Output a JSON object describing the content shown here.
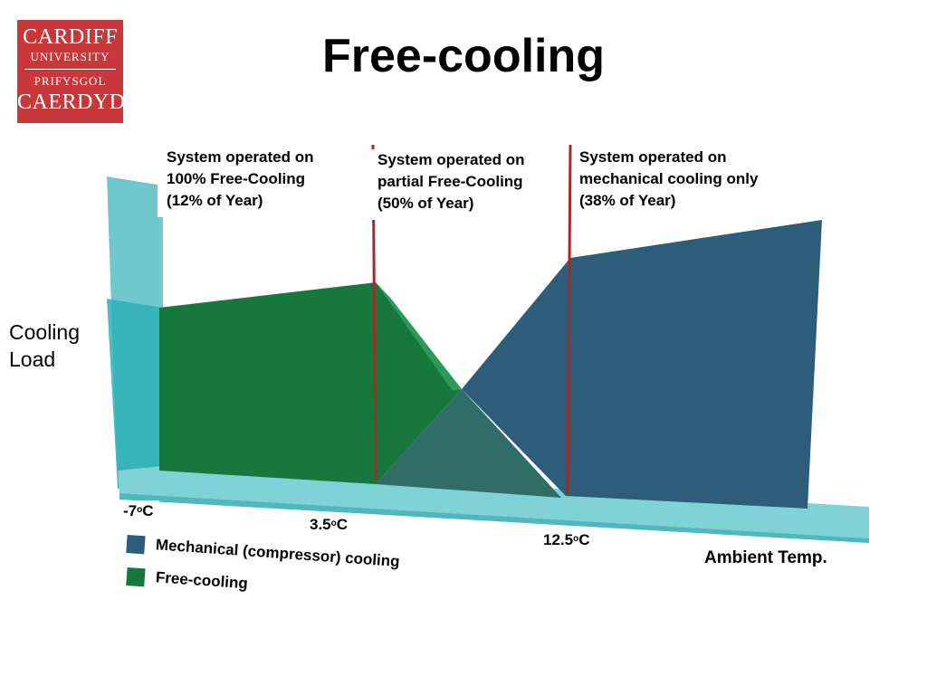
{
  "logo": {
    "line1": "CARDIFF",
    "line2": "UNIVERSITY",
    "line3": "PRIFYSGOL",
    "line4": "CAERDYDD"
  },
  "title": "Free-cooling",
  "colors": {
    "mechanical": "#2e5d79",
    "free_cooling": "#17783d",
    "overlap": "#2f6d66",
    "axis": "#5fc2c8",
    "divider": "#a22a2a"
  },
  "annotations": {
    "full": [
      "System operated on",
      "100% Free-Cooling",
      "(12% of Year)"
    ],
    "partial": [
      "System operated on",
      "partial Free-Cooling",
      "(50% of Year)"
    ],
    "mechanical": [
      "System operated on",
      "mechanical cooling only",
      "(38% of Year)"
    ]
  },
  "axes": {
    "ylabel_line1": "Cooling",
    "ylabel_line2": "Load",
    "xlabel": "Ambient Temp."
  },
  "ticks": {
    "t1": {
      "value": "-7",
      "unit": "C",
      "sup": "o"
    },
    "t2": {
      "value": "3.5",
      "unit": "C",
      "sup": "o"
    },
    "t3": {
      "value": "12.5",
      "unit": "C",
      "sup": "o"
    }
  },
  "legend": {
    "mechanical": "Mechanical (compressor) cooling",
    "free_cooling": "Free-cooling"
  }
}
